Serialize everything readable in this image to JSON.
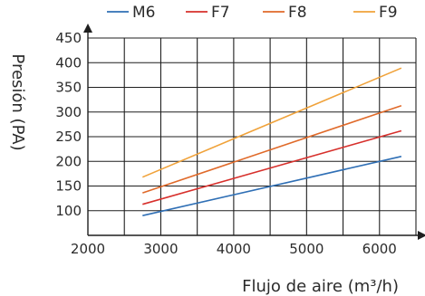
{
  "chart_data": {
    "type": "line",
    "title": "",
    "xlabel": "Flujo de aire (m³/h)",
    "ylabel": "Presión  (PA)",
    "xlim": [
      2000,
      6500
    ],
    "ylim": [
      50,
      450
    ],
    "x_ticks": [
      2000,
      3000,
      4000,
      5000,
      6000
    ],
    "y_ticks": [
      100,
      150,
      200,
      250,
      300,
      350,
      400,
      450
    ],
    "x_grid_step": 500,
    "y_grid_step": 50,
    "grid": true,
    "legend_position": "top",
    "series": [
      {
        "name": "M6",
        "color": "#2f6fb5",
        "x": [
          2750,
          6300
        ],
        "y": [
          90,
          210
        ]
      },
      {
        "name": "F7",
        "color": "#d7302c",
        "x": [
          2750,
          6300
        ],
        "y": [
          113,
          262
        ]
      },
      {
        "name": "F8",
        "color": "#e06a2a",
        "x": [
          2750,
          6300
        ],
        "y": [
          136,
          313
        ]
      },
      {
        "name": "F9",
        "color": "#f0a23a",
        "x": [
          2750,
          6300
        ],
        "y": [
          168,
          389
        ]
      }
    ]
  }
}
